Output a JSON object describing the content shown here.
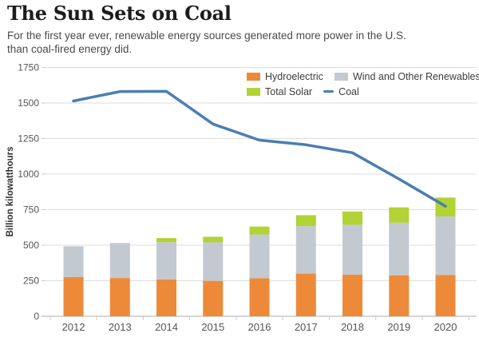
{
  "header": {
    "title": "The Sun Sets on Coal",
    "subtitle": "For the first year ever, renewable energy sources generated more power in the U.S. than coal-fired energy did."
  },
  "colors": {
    "hydro": "#ED8A3A",
    "wind": "#C3C9D0",
    "solar": "#B2D235",
    "coal": "#4C7DB3",
    "grid": "#DEDEDE",
    "axis_line": "#C9C9C9",
    "tick_mark": "#CCCCCC",
    "tick_text": "#555555",
    "axis_title_text": "#333333"
  },
  "legend": {
    "items": [
      {
        "label": "Hydroelectric",
        "swatch": "box",
        "color_key": "hydro"
      },
      {
        "label": "Wind and Other Renewables",
        "swatch": "box",
        "color_key": "wind"
      },
      {
        "label": "Total Solar",
        "swatch": "box",
        "color_key": "solar"
      },
      {
        "label": "Coal",
        "swatch": "line",
        "color_key": "coal"
      }
    ]
  },
  "chart_data": {
    "type": "stacked-bar with line overlay",
    "title": "The Sun Sets on Coal",
    "subtitle": "For the first year ever, renewable energy sources generated more power in the U.S. than coal-fired energy did.",
    "categories": [
      "2012",
      "2013",
      "2014",
      "2015",
      "2016",
      "2017",
      "2018",
      "2019",
      "2020"
    ],
    "series": [
      {
        "name": "Hydroelectric",
        "type": "bar",
        "color_key": "hydro",
        "values": [
          276,
          269,
          259,
          249,
          268,
          300,
          292,
          288,
          291
        ]
      },
      {
        "name": "Wind and Other Renewables",
        "type": "bar",
        "color_key": "wind",
        "values": [
          216,
          246,
          262,
          271,
          307,
          334,
          352,
          370,
          411
        ]
      },
      {
        "name": "Total Solar",
        "type": "bar",
        "color_key": "solar",
        "values": [
          4,
          9,
          29,
          39,
          56,
          77,
          93,
          108,
          133
        ]
      },
      {
        "name": "Coal",
        "type": "line",
        "color_key": "coal",
        "values": [
          1514,
          1581,
          1582,
          1352,
          1239,
          1206,
          1150,
          966,
          774
        ]
      }
    ],
    "xlabel": "",
    "ylabel": "Billion kilowatthours",
    "ylim": [
      0,
      1750
    ],
    "yticks": [
      0,
      250,
      500,
      750,
      1000,
      1250,
      1500,
      1750
    ],
    "grid": "horizontal",
    "legend_position": "top-right-inside"
  }
}
